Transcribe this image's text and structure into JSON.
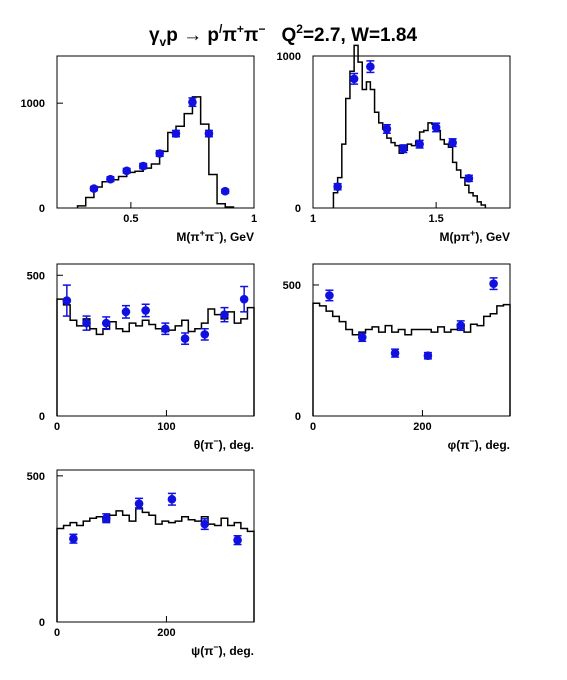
{
  "title": {
    "main": "γ",
    "v_sub": "v",
    "p_text": "p → p",
    "prime": "/",
    "pi1": "π",
    "pi1_sup": "+",
    "pi2": "π",
    "pi2_sup": "−",
    "q_text": "Q",
    "q_sup": "2",
    "rest": "=2.7, W=1.84"
  },
  "colors": {
    "data_points": "#1010e0",
    "histogram": "#000000",
    "frame": "#000000"
  },
  "chart_data": [
    {
      "type": "scatter",
      "id": "m_pipi",
      "xlabel": {
        "pre": "M(π",
        "sup1": "+",
        "mid": "π",
        "sup2": "−",
        "post": "), GeV"
      },
      "xlim": [
        0.2,
        1.0
      ],
      "ylim": [
        0,
        1450
      ],
      "xticks": [
        {
          "v": 0.5,
          "l": "0.5"
        },
        {
          "v": 1.0,
          "l": "1"
        }
      ],
      "yticks": [
        {
          "v": 0,
          "l": "0"
        },
        {
          "v": 1000,
          "l": "1000"
        }
      ],
      "histogram": {
        "edges": [
          0.2833,
          0.3167,
          0.35,
          0.3833,
          0.4167,
          0.45,
          0.4833,
          0.5167,
          0.55,
          0.5833,
          0.6167,
          0.65,
          0.6833,
          0.7167,
          0.75,
          0.7833,
          0.8167,
          0.85,
          0.8833,
          0.9167
        ],
        "values": [
          20,
          100,
          200,
          250,
          270,
          300,
          340,
          350,
          380,
          420,
          540,
          720,
          780,
          900,
          1060,
          800,
          320,
          40,
          10
        ]
      },
      "points": [
        {
          "x": 0.35,
          "y": 185,
          "err": 20
        },
        {
          "x": 0.417,
          "y": 275,
          "err": 22
        },
        {
          "x": 0.483,
          "y": 355,
          "err": 22
        },
        {
          "x": 0.55,
          "y": 400,
          "err": 25
        },
        {
          "x": 0.617,
          "y": 520,
          "err": 27
        },
        {
          "x": 0.683,
          "y": 710,
          "err": 30
        },
        {
          "x": 0.75,
          "y": 1010,
          "err": 40
        },
        {
          "x": 0.817,
          "y": 710,
          "err": 30
        },
        {
          "x": 0.883,
          "y": 160,
          "err": 18
        }
      ]
    },
    {
      "type": "scatter",
      "id": "m_ppip",
      "xlabel": {
        "pre": "M(pπ",
        "sup1": "+",
        "mid": "",
        "sup2": "",
        "post": "), GeV"
      },
      "xlim": [
        1.0,
        1.8
      ],
      "ylim": [
        0,
        1000
      ],
      "xticks": [
        {
          "v": 1.0,
          "l": "1"
        },
        {
          "v": 1.5,
          "l": "1.5"
        }
      ],
      "yticks": [
        {
          "v": 0,
          "l": "0"
        },
        {
          "v": 1000,
          "l": "1000"
        }
      ],
      "histogram": {
        "edges": [
          1.083,
          1.1,
          1.117,
          1.133,
          1.15,
          1.167,
          1.183,
          1.2,
          1.217,
          1.233,
          1.25,
          1.267,
          1.283,
          1.3,
          1.317,
          1.333,
          1.35,
          1.367,
          1.383,
          1.4,
          1.417,
          1.433,
          1.45,
          1.467,
          1.483,
          1.5,
          1.517,
          1.533,
          1.55,
          1.567,
          1.583,
          1.6,
          1.617,
          1.633,
          1.65,
          1.667,
          1.683,
          1.7
        ],
        "values": [
          100,
          200,
          420,
          720,
          900,
          1070,
          960,
          780,
          830,
          780,
          630,
          560,
          520,
          460,
          430,
          410,
          360,
          380,
          420,
          410,
          440,
          500,
          510,
          560,
          550,
          510,
          450,
          420,
          400,
          300,
          250,
          200,
          150,
          100,
          80,
          40,
          20
        ]
      },
      "points": [
        {
          "x": 1.1,
          "y": 140,
          "err": 20
        },
        {
          "x": 1.167,
          "y": 850,
          "err": 35
        },
        {
          "x": 1.233,
          "y": 930,
          "err": 38
        },
        {
          "x": 1.3,
          "y": 520,
          "err": 28
        },
        {
          "x": 1.367,
          "y": 390,
          "err": 25
        },
        {
          "x": 1.433,
          "y": 420,
          "err": 25
        },
        {
          "x": 1.5,
          "y": 530,
          "err": 28
        },
        {
          "x": 1.567,
          "y": 430,
          "err": 25
        },
        {
          "x": 1.633,
          "y": 195,
          "err": 20
        }
      ]
    },
    {
      "type": "scatter",
      "id": "theta",
      "xlabel": {
        "pre": "θ(π",
        "sup1": "−",
        "mid": "",
        "sup2": "",
        "post": "), deg."
      },
      "xlim": [
        0,
        180
      ],
      "ylim": [
        0,
        540
      ],
      "xticks": [
        {
          "v": 0,
          "l": "0"
        },
        {
          "v": 100,
          "l": "100"
        }
      ],
      "yticks": [
        {
          "v": 0,
          "l": "0"
        },
        {
          "v": 500,
          "l": "500"
        }
      ],
      "histogram": {
        "edges": [
          0,
          6,
          12,
          18,
          24,
          30,
          36,
          42,
          48,
          54,
          60,
          66,
          72,
          78,
          84,
          90,
          96,
          102,
          108,
          114,
          120,
          126,
          132,
          138,
          144,
          150,
          156,
          162,
          168,
          174,
          180
        ],
        "values": [
          415,
          395,
          340,
          320,
          345,
          310,
          290,
          310,
          335,
          310,
          300,
          330,
          320,
          340,
          325,
          310,
          300,
          305,
          320,
          340,
          300,
          310,
          330,
          380,
          360,
          345,
          370,
          330,
          345,
          385
        ]
      },
      "points": [
        {
          "x": 9,
          "y": 410,
          "err": 55
        },
        {
          "x": 27,
          "y": 330,
          "err": 25
        },
        {
          "x": 45,
          "y": 330,
          "err": 22
        },
        {
          "x": 63,
          "y": 370,
          "err": 22
        },
        {
          "x": 81,
          "y": 375,
          "err": 22
        },
        {
          "x": 99,
          "y": 310,
          "err": 20
        },
        {
          "x": 117,
          "y": 275,
          "err": 20
        },
        {
          "x": 135,
          "y": 290,
          "err": 20
        },
        {
          "x": 153,
          "y": 360,
          "err": 25
        },
        {
          "x": 171,
          "y": 415,
          "err": 45
        }
      ]
    },
    {
      "type": "scatter",
      "id": "phi",
      "xlabel": {
        "pre": "φ(π",
        "sup1": "−",
        "mid": "",
        "sup2": "",
        "post": "), deg."
      },
      "xlim": [
        0,
        360
      ],
      "ylim": [
        0,
        580
      ],
      "xticks": [
        {
          "v": 0,
          "l": "0"
        },
        {
          "v": 200,
          "l": "200"
        }
      ],
      "yticks": [
        {
          "v": 0,
          "l": "0"
        },
        {
          "v": 500,
          "l": "500"
        }
      ],
      "histogram": {
        "edges": [
          0,
          12,
          24,
          36,
          48,
          60,
          72,
          84,
          96,
          108,
          120,
          132,
          144,
          156,
          168,
          180,
          192,
          204,
          216,
          228,
          240,
          252,
          264,
          276,
          288,
          300,
          312,
          324,
          336,
          348,
          360
        ],
        "values": [
          430,
          420,
          400,
          380,
          360,
          330,
          310,
          320,
          330,
          340,
          320,
          345,
          320,
          330,
          310,
          330,
          330,
          330,
          320,
          340,
          320,
          330,
          350,
          320,
          350,
          345,
          380,
          390,
          420,
          425
        ]
      },
      "points": [
        {
          "x": 30,
          "y": 460,
          "err": 20
        },
        {
          "x": 90,
          "y": 300,
          "err": 15
        },
        {
          "x": 150,
          "y": 240,
          "err": 15
        },
        {
          "x": 210,
          "y": 230,
          "err": 12
        },
        {
          "x": 270,
          "y": 345,
          "err": 18
        },
        {
          "x": 330,
          "y": 505,
          "err": 22
        }
      ]
    },
    {
      "type": "scatter",
      "id": "psi",
      "xlabel": {
        "pre": "ψ(π",
        "sup1": "−",
        "mid": "",
        "sup2": "",
        "post": "), deg."
      },
      "xlim": [
        0,
        360
      ],
      "ylim": [
        0,
        520
      ],
      "xticks": [
        {
          "v": 0,
          "l": "0"
        },
        {
          "v": 200,
          "l": "200"
        }
      ],
      "yticks": [
        {
          "v": 0,
          "l": "0"
        },
        {
          "v": 500,
          "l": "500"
        }
      ],
      "histogram": {
        "edges": [
          0,
          12,
          24,
          36,
          48,
          60,
          72,
          84,
          96,
          108,
          120,
          132,
          144,
          156,
          168,
          180,
          192,
          204,
          216,
          228,
          240,
          252,
          264,
          276,
          288,
          300,
          312,
          324,
          336,
          348,
          360
        ],
        "values": [
          320,
          330,
          340,
          330,
          345,
          355,
          360,
          345,
          365,
          380,
          365,
          345,
          390,
          375,
          365,
          335,
          345,
          340,
          345,
          360,
          350,
          345,
          360,
          335,
          330,
          355,
          330,
          340,
          320,
          310
        ]
      },
      "points": [
        {
          "x": 30,
          "y": 285,
          "err": 15
        },
        {
          "x": 90,
          "y": 355,
          "err": 15
        },
        {
          "x": 150,
          "y": 405,
          "err": 18
        },
        {
          "x": 210,
          "y": 420,
          "err": 20
        },
        {
          "x": 270,
          "y": 335,
          "err": 18
        },
        {
          "x": 330,
          "y": 280,
          "err": 15
        }
      ]
    }
  ]
}
